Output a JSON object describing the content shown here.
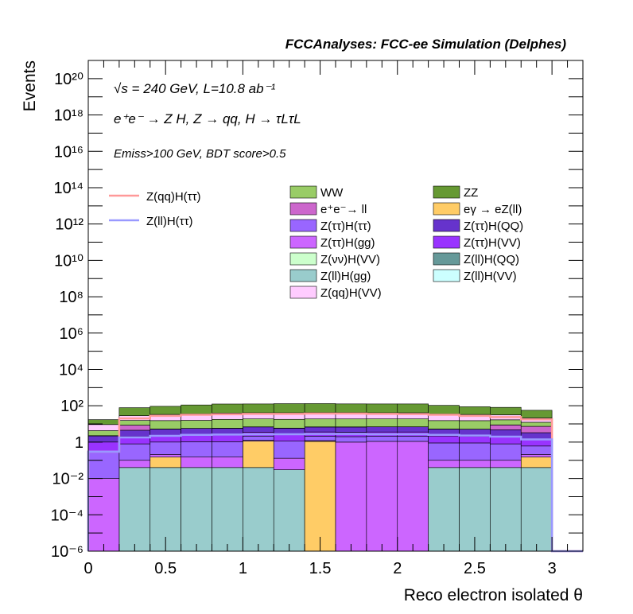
{
  "header": {
    "title": "FCCAnalyses: FCC-ee Simulation (Delphes)"
  },
  "annotations": {
    "line1": "√s = 240 GeV, L=10.8 ab⁻¹",
    "line2": "e⁺e⁻ → Z H, Z → qq, H → τLτL",
    "line3": "Emiss>100 GeV, BDT score>0.5"
  },
  "chart_data": {
    "type": "bar",
    "stacked": true,
    "xlabel": "Reco electron isolated θ",
    "ylabel": "Events",
    "xlim": [
      0,
      3.2
    ],
    "ylim": [
      1e-06,
      1e+21
    ],
    "yscale": "log",
    "x_ticks": [
      "0",
      "0.5",
      "1",
      "1.5",
      "2",
      "2.5",
      "3"
    ],
    "y_ticks": [
      "10⁻⁶",
      "10⁻⁴",
      "10⁻²",
      "1",
      "10²",
      "10⁴",
      "10⁶",
      "10⁸",
      "10¹⁰",
      "10¹²",
      "10¹⁴",
      "10¹⁶",
      "10¹⁸",
      "10²⁰"
    ],
    "bin_edges": [
      0,
      0.2,
      0.4,
      0.6,
      0.8,
      1.0,
      1.2,
      1.4,
      1.6,
      1.8,
      2.0,
      2.2,
      2.4,
      2.6,
      2.8,
      3.0
    ],
    "stack_series": [
      {
        "name": "Z(ll)H(gg)",
        "color": "#99cccc",
        "values": [
          0,
          0.04,
          0.04,
          0.04,
          0.04,
          0.04,
          0.03,
          0,
          0,
          0,
          0,
          0.04,
          0.04,
          0.04,
          0.04
        ]
      },
      {
        "name": "eγ → eZ(ll)",
        "color": "#ffcc66",
        "values": [
          0,
          0,
          0.11,
          0,
          0,
          1.1,
          0,
          1.1,
          0,
          0,
          0,
          0,
          0,
          0,
          0.11
        ]
      },
      {
        "name": "Z(ττ)H(gg)",
        "color": "#cc66ff",
        "values": [
          0.01,
          0.06,
          0.06,
          0.11,
          0.11,
          0.11,
          0.1,
          0.11,
          1.0,
          1.1,
          1.1,
          0.06,
          0.06,
          0.06,
          0.06
        ]
      },
      {
        "name": "Z(ττ)H(ττ)",
        "color": "#9966ff",
        "values": [
          0.3,
          0.7,
          0.8,
          0.9,
          0.9,
          0.9,
          1.0,
          0.9,
          1.0,
          1.0,
          1.0,
          0.8,
          0.8,
          0.7,
          0.4
        ]
      },
      {
        "name": "Z(ττ)H(VV)",
        "color": "#9933ff",
        "values": [
          0.7,
          1.2,
          1.3,
          1.4,
          1.4,
          1.4,
          1.5,
          1.5,
          1.5,
          1.5,
          1.5,
          1.3,
          1.2,
          1.2,
          0.9
        ]
      },
      {
        "name": "Z(ττ)H(QQ)",
        "color": "#6633cc",
        "values": [
          1.2,
          2.5,
          2.9,
          3.2,
          3.3,
          3.3,
          3.2,
          3.2,
          3.3,
          3.3,
          3.3,
          3.0,
          3.0,
          2.8,
          1.8
        ]
      },
      {
        "name": "e⁺e⁻→ ll",
        "color": "#cc66cc",
        "values": [
          0,
          4,
          0,
          0,
          0,
          0,
          0,
          0,
          0,
          0,
          0,
          0,
          0,
          4,
          4
        ]
      },
      {
        "name": "Z(νν)H(VV)",
        "color": "#ccffcc",
        "values": [
          0.02,
          0.03,
          0.03,
          0.03,
          0.03,
          0.03,
          0.03,
          0.03,
          0.03,
          0.03,
          0.03,
          0.03,
          0.03,
          0.03,
          0.02
        ]
      },
      {
        "name": "Z(ll)H(QQ)",
        "color": "#669999",
        "values": [
          0.02,
          0.03,
          0.03,
          0.03,
          0.03,
          0.03,
          0.03,
          0.03,
          0.03,
          0.03,
          0.03,
          0.03,
          0.03,
          0.03,
          0.02
        ]
      },
      {
        "name": "Z(ll)H(VV)",
        "color": "#ccffff",
        "values": [
          0.02,
          0.03,
          0.03,
          0.03,
          0.03,
          0.03,
          0.03,
          0.03,
          0.03,
          0.03,
          0.03,
          0.03,
          0.03,
          0.03,
          0.02
        ]
      },
      {
        "name": "WW",
        "color": "#99cc66",
        "values": [
          2.0,
          7,
          10,
          10,
          12,
          12,
          12,
          12,
          12,
          12,
          12,
          10,
          10,
          8,
          5
        ]
      },
      {
        "name": "Z(qq)H(VV)",
        "color": "#ffccff",
        "values": [
          5,
          13,
          18,
          20,
          22,
          22,
          23,
          23,
          23,
          22,
          22,
          20,
          18,
          15,
          9
        ]
      },
      {
        "name": "ZZ",
        "color": "#669933",
        "values": [
          8,
          50,
          60,
          75,
          85,
          85,
          90,
          90,
          85,
          85,
          85,
          70,
          55,
          50,
          35
        ]
      }
    ],
    "line_series": [
      {
        "name": "Z(qq)H(ττ)",
        "color": "#ff9999",
        "values": [
          0.3,
          20,
          28,
          32,
          34,
          36,
          36,
          37,
          37,
          36,
          35,
          32,
          28,
          24,
          18
        ]
      },
      {
        "name": "Z(ll)H(ττ)",
        "color": "#9999ff",
        "values": [
          0.3,
          1.8,
          2.2,
          2.5,
          2.6,
          2.7,
          2.7,
          2.8,
          2.8,
          2.7,
          2.7,
          2.5,
          2.3,
          2.0,
          1.4
        ]
      }
    ],
    "legend_fill": [
      [
        "WW",
        "ZZ"
      ],
      [
        "e⁺e⁻→ ll",
        "eγ → eZ(ll)"
      ],
      [
        "Z(ττ)H(ττ)",
        "Z(ττ)H(QQ)"
      ],
      [
        "Z(ττ)H(gg)",
        "Z(ττ)H(VV)"
      ],
      [
        "Z(νν)H(VV)",
        "Z(ll)H(QQ)"
      ],
      [
        "Z(ll)H(gg)",
        "Z(ll)H(VV)"
      ],
      [
        "Z(qq)H(VV)",
        ""
      ]
    ],
    "legend_lines": [
      "Z(qq)H(ττ)",
      "Z(ll)H(ττ)"
    ],
    "grid": false
  }
}
